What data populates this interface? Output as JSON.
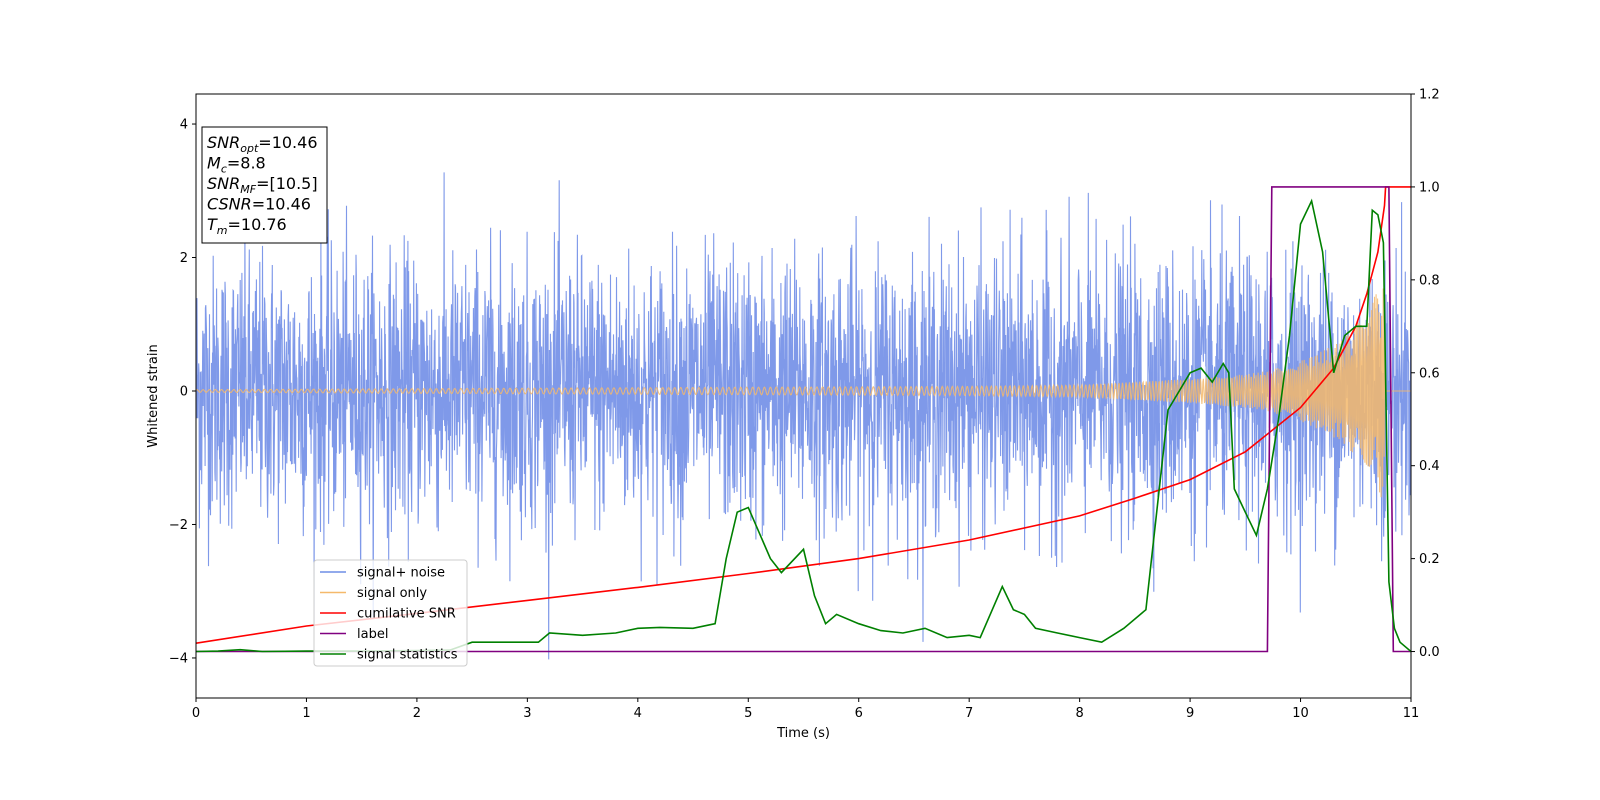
{
  "chart_data": {
    "type": "line",
    "xlabel": "Time (s)",
    "ylabel": "Whitened strain",
    "xlim": [
      0,
      11
    ],
    "ylim_left": [
      -4.6,
      4.45
    ],
    "ylim_right": [
      -0.1,
      1.2
    ],
    "x_ticks": [
      0,
      1,
      2,
      3,
      4,
      5,
      6,
      7,
      8,
      9,
      10,
      11
    ],
    "y_ticks_left": [
      -4,
      -2,
      0,
      2,
      4
    ],
    "y_ticks_right": [
      0.0,
      0.2,
      0.4,
      0.6,
      0.8,
      1.0,
      1.2
    ],
    "y_tick_labels_left": [
      "−4",
      "−2",
      "0",
      "2",
      "4"
    ],
    "y_tick_labels_right": [
      "0.0",
      "0.2",
      "0.4",
      "0.6",
      "0.8",
      "1.0",
      "1.2"
    ],
    "annotation": {
      "lines": [
        {
          "main": "SNR",
          "sub": "opt",
          "value": "=10.46"
        },
        {
          "main": "M",
          "sub": "c",
          "value": "=8.8"
        },
        {
          "main": "SNR",
          "sub": "MF",
          "value": "=[10.5]"
        },
        {
          "main": "CSNR",
          "sub": "",
          "value": "=10.46"
        },
        {
          "main": "T",
          "sub": "m",
          "value": "=10.76"
        }
      ]
    },
    "legend": {
      "placement": "lower-left",
      "entries": [
        {
          "label": "signal+ noise",
          "color": "#6f8ee6"
        },
        {
          "label": "signal only",
          "color": "#f5b96b"
        },
        {
          "label": "cumilative SNR",
          "color": "#ff0000"
        },
        {
          "label": "label",
          "color": "#800080"
        },
        {
          "label": "signal statistics",
          "color": "#008000"
        }
      ]
    },
    "series": [
      {
        "name": "signal+ noise",
        "axis": "left",
        "kind": "gaussian-noise",
        "color": "#7893e8",
        "std": 1.0,
        "range": [
          -4.1,
          4.05
        ]
      },
      {
        "name": "signal only",
        "axis": "left",
        "kind": "chirp-envelope",
        "color": "#f5b96b",
        "envelope": [
          [
            0,
            0.02
          ],
          [
            4,
            0.05
          ],
          [
            7,
            0.07
          ],
          [
            8,
            0.09
          ],
          [
            9,
            0.18
          ],
          [
            9.5,
            0.25
          ],
          [
            9.7,
            0.3
          ],
          [
            10.0,
            0.45
          ],
          [
            10.2,
            0.6
          ],
          [
            10.4,
            0.8
          ],
          [
            10.6,
            1.2
          ],
          [
            10.76,
            1.7
          ],
          [
            10.77,
            0
          ]
        ]
      },
      {
        "name": "cumilative SNR",
        "axis": "right",
        "color": "#ff0000",
        "points": [
          [
            0,
            0.018
          ],
          [
            1,
            0.055
          ],
          [
            2,
            0.082
          ],
          [
            3,
            0.11
          ],
          [
            4,
            0.138
          ],
          [
            5,
            0.168
          ],
          [
            6,
            0.2
          ],
          [
            7,
            0.24
          ],
          [
            8,
            0.292
          ],
          [
            8.5,
            0.33
          ],
          [
            9,
            0.37
          ],
          [
            9.5,
            0.43
          ],
          [
            10,
            0.525
          ],
          [
            10.3,
            0.61
          ],
          [
            10.5,
            0.7
          ],
          [
            10.6,
            0.77
          ],
          [
            10.7,
            0.86
          ],
          [
            10.76,
            0.96
          ],
          [
            10.77,
            1.0
          ],
          [
            11,
            1.0
          ]
        ]
      },
      {
        "name": "label",
        "axis": "right",
        "color": "#800080",
        "points": [
          [
            0,
            0.0
          ],
          [
            9.7,
            0.0
          ],
          [
            9.74,
            1.0
          ],
          [
            10.8,
            1.0
          ],
          [
            10.84,
            0.0
          ],
          [
            11,
            0.0
          ]
        ]
      },
      {
        "name": "signal statistics",
        "axis": "right",
        "color": "#008000",
        "points": [
          [
            0,
            0.0
          ],
          [
            0.2,
            0.001
          ],
          [
            0.4,
            0.004
          ],
          [
            0.6,
            0.0
          ],
          [
            1,
            0.001
          ],
          [
            1.5,
            0.001
          ],
          [
            2,
            0.002
          ],
          [
            2.3,
            0.003
          ],
          [
            2.5,
            0.02
          ],
          [
            2.8,
            0.02
          ],
          [
            3.1,
            0.02
          ],
          [
            3.2,
            0.04
          ],
          [
            3.5,
            0.035
          ],
          [
            3.8,
            0.04
          ],
          [
            4.0,
            0.05
          ],
          [
            4.2,
            0.052
          ],
          [
            4.5,
            0.05
          ],
          [
            4.7,
            0.06
          ],
          [
            4.8,
            0.2
          ],
          [
            4.9,
            0.3
          ],
          [
            5.0,
            0.31
          ],
          [
            5.2,
            0.2
          ],
          [
            5.3,
            0.17
          ],
          [
            5.5,
            0.22
          ],
          [
            5.6,
            0.12
          ],
          [
            5.7,
            0.06
          ],
          [
            5.8,
            0.08
          ],
          [
            6.0,
            0.06
          ],
          [
            6.2,
            0.045
          ],
          [
            6.4,
            0.04
          ],
          [
            6.6,
            0.05
          ],
          [
            6.8,
            0.03
          ],
          [
            7.0,
            0.035
          ],
          [
            7.1,
            0.03
          ],
          [
            7.3,
            0.14
          ],
          [
            7.4,
            0.09
          ],
          [
            7.5,
            0.08
          ],
          [
            7.6,
            0.05
          ],
          [
            7.8,
            0.04
          ],
          [
            8.0,
            0.03
          ],
          [
            8.2,
            0.02
          ],
          [
            8.4,
            0.05
          ],
          [
            8.6,
            0.09
          ],
          [
            8.8,
            0.52
          ],
          [
            9.0,
            0.6
          ],
          [
            9.1,
            0.61
          ],
          [
            9.2,
            0.58
          ],
          [
            9.3,
            0.62
          ],
          [
            9.35,
            0.6
          ],
          [
            9.4,
            0.35
          ],
          [
            9.5,
            0.3
          ],
          [
            9.6,
            0.25
          ],
          [
            9.7,
            0.35
          ],
          [
            9.8,
            0.5
          ],
          [
            9.9,
            0.68
          ],
          [
            10.0,
            0.92
          ],
          [
            10.1,
            0.97
          ],
          [
            10.2,
            0.86
          ],
          [
            10.3,
            0.6
          ],
          [
            10.4,
            0.68
          ],
          [
            10.5,
            0.7
          ],
          [
            10.6,
            0.7
          ],
          [
            10.65,
            0.95
          ],
          [
            10.7,
            0.94
          ],
          [
            10.75,
            0.88
          ],
          [
            10.8,
            0.15
          ],
          [
            10.85,
            0.05
          ],
          [
            10.9,
            0.02
          ],
          [
            11,
            0.0
          ]
        ]
      }
    ]
  }
}
